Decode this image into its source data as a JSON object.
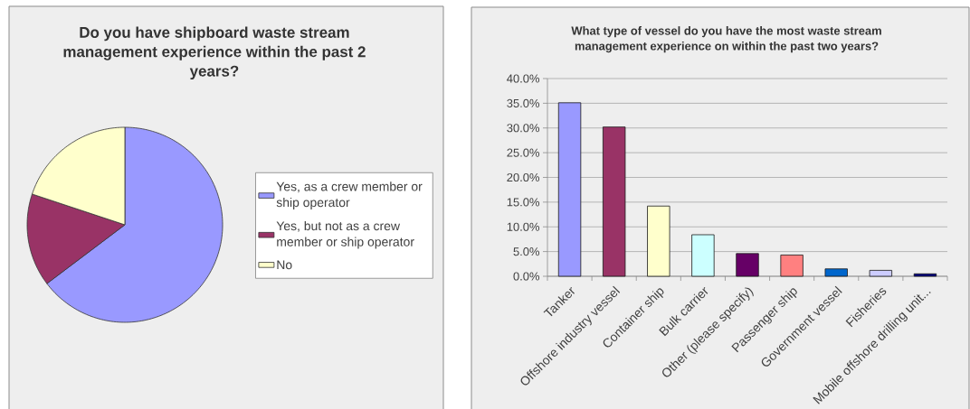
{
  "chart_data": [
    {
      "type": "pie",
      "title": "Do you have shipboard waste stream management experience within the past 2 years?",
      "categories": [
        "Yes, as a crew member or ship operator",
        "Yes, but not as a crew member or ship operator",
        "No"
      ],
      "values": [
        64.7,
        15.4,
        19.9
      ],
      "colors": [
        "#9999ff",
        "#993366",
        "#ffffcc"
      ],
      "legend": "right"
    },
    {
      "type": "bar",
      "title": "What type of vessel do you have the most waste stream management experience on within the past two years?",
      "categories": [
        "Tanker",
        "Offshore industry vessel",
        "Container ship",
        "Bulk carrier",
        "Other (please specify)",
        "Passenger ship",
        "Government vessel",
        "Fisheries",
        "Mobile offshore drilling unit..."
      ],
      "values": [
        35.1,
        30.2,
        14.2,
        8.4,
        4.6,
        4.3,
        1.5,
        1.2,
        0.5
      ],
      "colors": [
        "#9999ff",
        "#993366",
        "#ffffcc",
        "#ccffff",
        "#660066",
        "#ff8080",
        "#0066cc",
        "#ccccff",
        "#000080"
      ],
      "ylim": [
        0,
        40
      ],
      "yticks": [
        {
          "value": 0,
          "label": "0.0%"
        },
        {
          "value": 5,
          "label": "5.0%"
        },
        {
          "value": 10,
          "label": "10.0%"
        },
        {
          "value": 15,
          "label": "15.0%"
        },
        {
          "value": 20,
          "label": "20.0%"
        },
        {
          "value": 25,
          "label": "25.0%"
        },
        {
          "value": 30,
          "label": "30.0%"
        },
        {
          "value": 35,
          "label": "35.0%"
        },
        {
          "value": 40,
          "label": "40.0%"
        }
      ],
      "grid": "y"
    }
  ]
}
